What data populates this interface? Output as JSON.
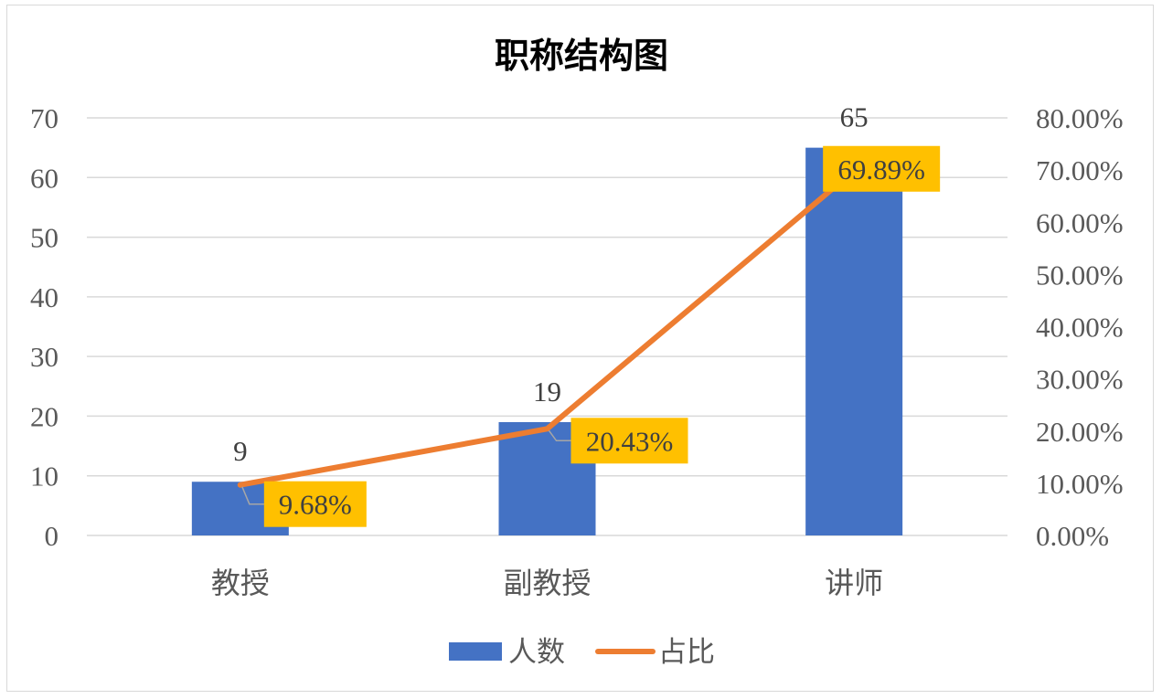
{
  "chart_data": {
    "type": "bar",
    "title": "职称结构图",
    "categories": [
      "教授",
      "副教授",
      "讲师"
    ],
    "series": [
      {
        "name": "人数",
        "type": "bar",
        "axis": "left",
        "values": [
          9,
          19,
          65
        ],
        "color": "#4472c4"
      },
      {
        "name": "占比",
        "type": "line",
        "axis": "right",
        "values": [
          9.68,
          20.43,
          69.89
        ],
        "labels": [
          "9.68%",
          "20.43%",
          "69.89%"
        ],
        "color": "#ed7d31"
      }
    ],
    "y_left": {
      "ylim": [
        0,
        70
      ],
      "ticks": [
        "0",
        "10",
        "20",
        "30",
        "40",
        "50",
        "60",
        "70"
      ]
    },
    "y_right": {
      "ylim": [
        0,
        80
      ],
      "ticks": [
        "0.00%",
        "10.00%",
        "20.00%",
        "30.00%",
        "40.00%",
        "50.00%",
        "60.00%",
        "70.00%",
        "80.00%"
      ]
    },
    "label_box_color": "#ffc000",
    "grid": true,
    "legend": "bottom"
  }
}
